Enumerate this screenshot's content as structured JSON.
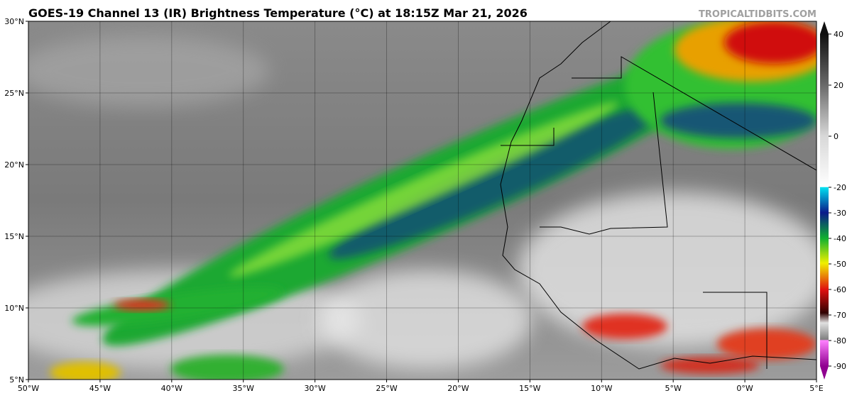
{
  "map": {
    "title": "GOES-19 Channel 13 (IR) Brightness Temperature (°C) at 18:15Z Mar 21, 2026",
    "credit": "TROPICALTIDBITS.COM",
    "lonlim": [
      -50,
      5
    ],
    "latlim": [
      5,
      30
    ],
    "lon_ticks": [
      {
        "value": -50,
        "label": "50°W"
      },
      {
        "value": -45,
        "label": "45°W"
      },
      {
        "value": -40,
        "label": "40°W"
      },
      {
        "value": -35,
        "label": "35°W"
      },
      {
        "value": -30,
        "label": "30°W"
      },
      {
        "value": -25,
        "label": "25°W"
      },
      {
        "value": -20,
        "label": "20°W"
      },
      {
        "value": -15,
        "label": "15°W"
      },
      {
        "value": -10,
        "label": "10°W"
      },
      {
        "value": -5,
        "label": "5°W"
      },
      {
        "value": 0,
        "label": "0°W"
      },
      {
        "value": 5,
        "label": "5°E"
      }
    ],
    "lat_ticks": [
      {
        "value": 5,
        "label": "5°N"
      },
      {
        "value": 10,
        "label": "10°N"
      },
      {
        "value": 15,
        "label": "15°N"
      },
      {
        "value": 20,
        "label": "20°N"
      },
      {
        "value": 25,
        "label": "25°N"
      },
      {
        "value": 30,
        "label": "30°N"
      }
    ],
    "colorbar": {
      "lim": [
        -90,
        40
      ],
      "ticks": [
        40,
        20,
        0,
        -20,
        -30,
        -40,
        -50,
        -60,
        -70,
        -80,
        -90
      ]
    }
  }
}
